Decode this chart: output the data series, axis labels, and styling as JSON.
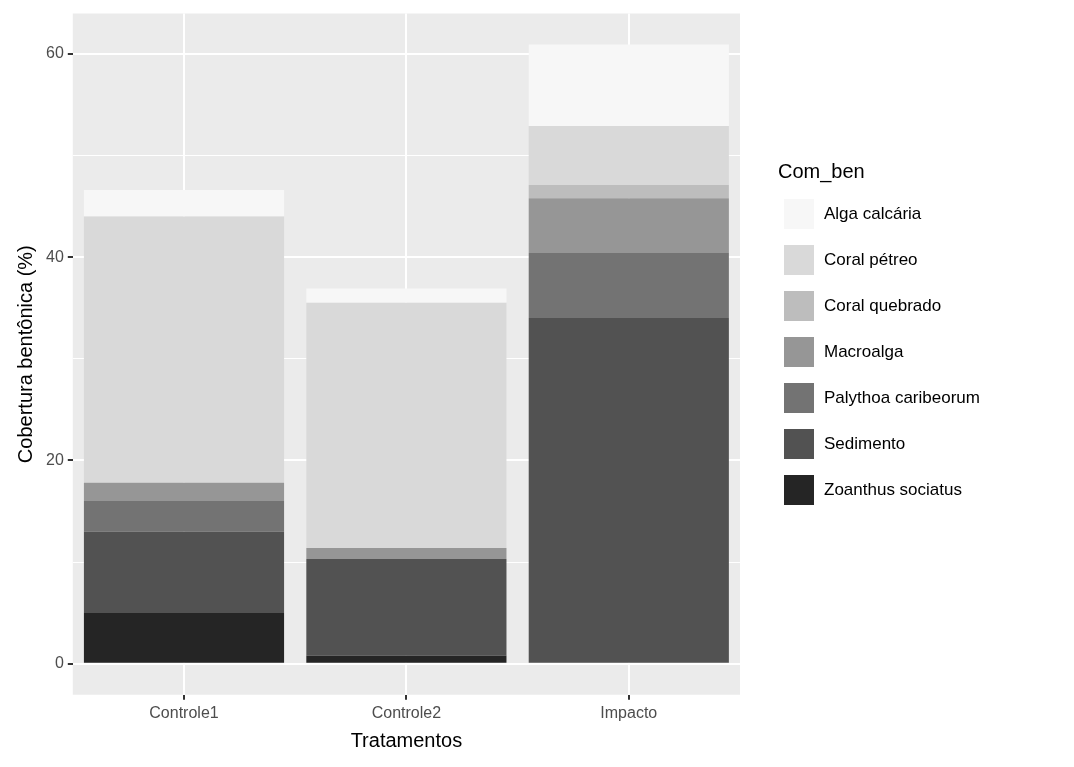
{
  "chart_data": {
    "type": "bar",
    "stacked": true,
    "categories": [
      "Controle1",
      "Controle2",
      "Impacto"
    ],
    "xlabel": "Tratamentos",
    "ylabel": "Cobertura bentônica (%)",
    "legend_title": "Com_ben",
    "ylim": [
      -3.05,
      63.95
    ],
    "yticks": [
      0,
      {
        "value": 10,
        "label": null
      },
      20,
      {
        "value": 30,
        "label": null
      },
      40,
      {
        "value": 50,
        "label": null
      },
      60
    ],
    "grid": true,
    "legend": "right",
    "series": [
      {
        "name": "Zoanthus sociatus",
        "color": "#252525",
        "values": [
          5,
          0.8,
          0
        ]
      },
      {
        "name": "Sedimento",
        "color": "#525252",
        "values": [
          8,
          9.5,
          34
        ]
      },
      {
        "name": "Palythoa caribeorum",
        "color": "#737373",
        "values": [
          3,
          0,
          6.4
        ]
      },
      {
        "name": "Macroalga",
        "color": "#969696",
        "values": [
          1.8,
          1.1,
          5.4
        ]
      },
      {
        "name": "Coral quebrado",
        "color": "#bdbdbd",
        "values": [
          0,
          0,
          1.3
        ]
      },
      {
        "name": "Coral pétreo",
        "color": "#d9d9d9",
        "values": [
          26.2,
          24.1,
          5.8
        ]
      },
      {
        "name": "Alga calcária",
        "color": "#f7f7f7",
        "values": [
          2.6,
          1.4,
          8
        ]
      }
    ]
  }
}
